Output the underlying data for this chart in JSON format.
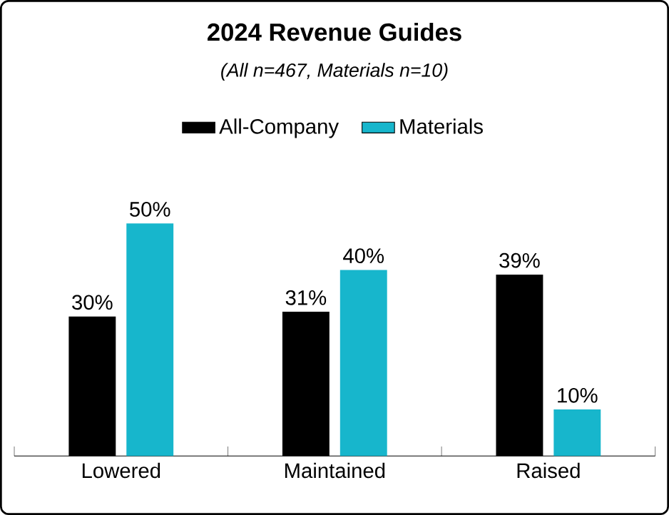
{
  "chart_data": {
    "type": "bar",
    "title": "2024 Revenue Guides",
    "subtitle": "(All n=467, Materials n=10)",
    "categories": [
      "Lowered",
      "Maintained",
      "Raised"
    ],
    "series": [
      {
        "name": "All-Company",
        "color": "#000000",
        "values": [
          30,
          31,
          39
        ],
        "value_labels": [
          "30%",
          "31%",
          "39%"
        ]
      },
      {
        "name": "Materials",
        "color": "#17b6cc",
        "values": [
          50,
          40,
          10
        ],
        "value_labels": [
          "50%",
          "40%",
          "10%"
        ]
      }
    ],
    "legend": "top"
  }
}
